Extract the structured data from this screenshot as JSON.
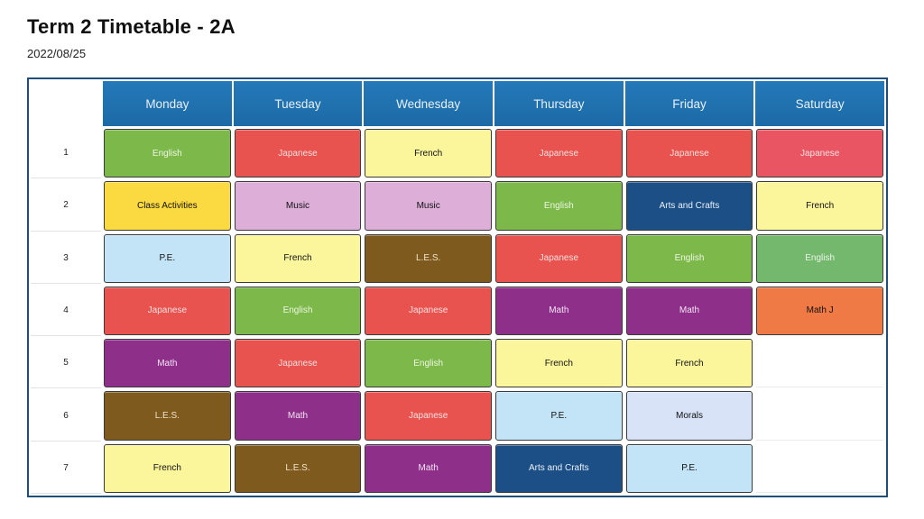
{
  "header": {
    "title": "Term 2 Timetable - 2A",
    "date": "2022/08/25"
  },
  "days": [
    "Monday",
    "Tuesday",
    "Wednesday",
    "Thursday",
    "Friday",
    "Saturday"
  ],
  "periods": [
    "1",
    "2",
    "3",
    "4",
    "5",
    "6",
    "7"
  ],
  "subject_colors": {
    "English": {
      "bg": "#7cb84a",
      "fg": "#eef7e2"
    },
    "Japanese": {
      "bg": "#e8534f",
      "fg": "#fbe0de"
    },
    "French": {
      "bg": "#fbf59c",
      "fg": "#111111"
    },
    "Class Activities": {
      "bg": "#fbd941",
      "fg": "#111111"
    },
    "Music": {
      "bg": "#dcaed8",
      "fg": "#111111"
    },
    "P.E.": {
      "bg": "#c3e4f6",
      "fg": "#111111"
    },
    "L.E.S.": {
      "bg": "#7e5a1e",
      "fg": "#f2e6cc"
    },
    "Math": {
      "bg": "#8e2f8a",
      "fg": "#f4e4f3"
    },
    "Arts and Crafts": {
      "bg": "#1c4f86",
      "fg": "#eaf1fa"
    },
    "Morals": {
      "bg": "#d8e3f7",
      "fg": "#111111"
    },
    "Math J": {
      "bg": "#f07a45",
      "fg": "#111111"
    },
    "English (Sat)": {
      "bg": "#74b86e",
      "fg": "#eaf6e8"
    },
    "Japanese (Sat)": {
      "bg": "#e95562",
      "fg": "#fbe0e2"
    }
  },
  "schedule": [
    [
      "English",
      "Japanese",
      "French",
      "Japanese",
      "Japanese",
      "Japanese"
    ],
    [
      "Class Activities",
      "Music",
      "Music",
      "English",
      "Arts and Crafts",
      "French"
    ],
    [
      "P.E.",
      "French",
      "L.E.S.",
      "Japanese",
      "English",
      "English"
    ],
    [
      "Japanese",
      "English",
      "Japanese",
      "Math",
      "Math",
      "Math J"
    ],
    [
      "Math",
      "Japanese",
      "English",
      "French",
      "French",
      ""
    ],
    [
      "L.E.S.",
      "Math",
      "Japanese",
      "P.E.",
      "Morals",
      ""
    ],
    [
      "French",
      "L.E.S.",
      "Math",
      "Arts and Crafts",
      "P.E.",
      ""
    ]
  ]
}
